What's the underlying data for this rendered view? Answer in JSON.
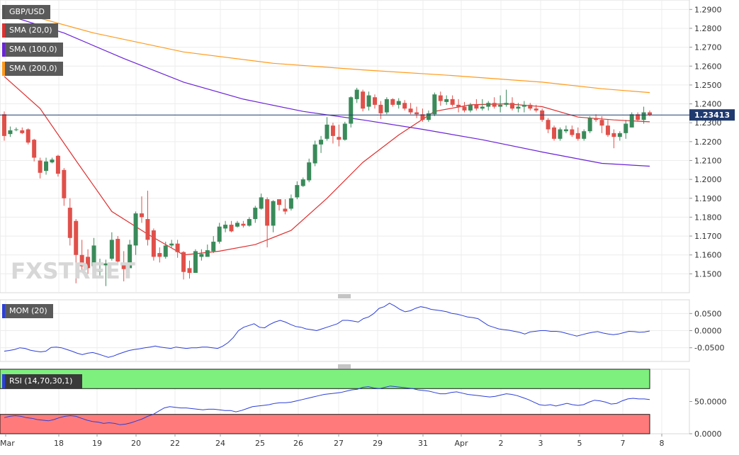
{
  "chart_data": [
    {
      "type": "candlestick",
      "symbol": "GBP/USD",
      "ylim": [
        1.14,
        1.295
      ],
      "price_ticks": [
        "1.1500",
        "1.1600",
        "1.1700",
        "1.1800",
        "1.1900",
        "1.2000",
        "1.2100",
        "1.2200",
        "1.2300",
        "1.2400",
        "1.2500",
        "1.2600",
        "1.2700",
        "1.2800",
        "1.2900"
      ],
      "current_price": "1.23413",
      "x_tick_labels": [
        "Mar",
        "18",
        "19",
        "20",
        "22",
        "24",
        "25",
        "26",
        "27",
        "29",
        "31",
        "Apr",
        "2",
        "3",
        "5",
        "7",
        "8"
      ],
      "legend": [
        {
          "label": "GBP/USD",
          "color": "#555555"
        },
        {
          "label": "SMA (20,0)",
          "color": "#e03030"
        },
        {
          "label": "SMA (100,0)",
          "color": "#6a22d8"
        },
        {
          "label": "SMA (200,0)",
          "color": "#ff9a1a"
        }
      ],
      "candles": [
        [
          1.2345,
          1.236,
          1.2205,
          1.223
        ],
        [
          1.224,
          1.228,
          1.2225,
          1.226
        ],
        [
          1.2265,
          1.2275,
          1.2255,
          1.2265
        ],
        [
          1.226,
          1.2275,
          1.224,
          1.2245
        ],
        [
          1.2265,
          1.227,
          1.2185,
          1.2195
        ],
        [
          1.221,
          1.2215,
          1.2095,
          1.2115
        ],
        [
          1.21,
          1.2115,
          1.2005,
          1.2035
        ],
        [
          1.2045,
          1.2115,
          1.2025,
          1.2095
        ],
        [
          1.209,
          1.2115,
          1.2085,
          1.2105
        ],
        [
          1.2125,
          1.213,
          1.2015,
          1.203
        ],
        [
          1.205,
          1.206,
          1.186,
          1.19
        ],
        [
          1.185,
          1.19,
          1.165,
          1.169
        ],
        [
          1.178,
          1.179,
          1.145,
          1.16
        ],
        [
          1.16,
          1.168,
          1.151,
          1.154
        ],
        [
          1.159,
          1.163,
          1.15,
          1.153
        ],
        [
          1.154,
          1.169,
          1.149,
          1.165
        ],
        [
          1.151,
          1.158,
          1.1485,
          1.1525
        ],
        [
          1.1545,
          1.1575,
          1.1435,
          1.1555
        ],
        [
          1.158,
          1.172,
          1.157,
          1.168
        ],
        [
          1.1685,
          1.17,
          1.1545,
          1.1565
        ],
        [
          1.1545,
          1.162,
          1.146,
          1.1525
        ],
        [
          1.153,
          1.168,
          1.1535,
          1.1655
        ],
        [
          1.165,
          1.183,
          1.16,
          1.182
        ],
        [
          1.182,
          1.191,
          1.177,
          1.18
        ],
        [
          1.179,
          1.194,
          1.165,
          1.168
        ],
        [
          1.173,
          1.174,
          1.157,
          1.159
        ],
        [
          1.161,
          1.164,
          1.156,
          1.159
        ],
        [
          1.159,
          1.167,
          1.158,
          1.165
        ],
        [
          1.165,
          1.168,
          1.164,
          1.166
        ],
        [
          1.166,
          1.168,
          1.1585,
          1.1615
        ],
        [
          1.1615,
          1.162,
          1.147,
          1.151
        ],
        [
          1.153,
          1.157,
          1.1475,
          1.1505
        ],
        [
          1.1505,
          1.163,
          1.1505,
          1.162
        ],
        [
          1.159,
          1.163,
          1.157,
          1.1605
        ],
        [
          1.159,
          1.1655,
          1.1595,
          1.1625
        ],
        [
          1.162,
          1.17,
          1.161,
          1.167
        ],
        [
          1.167,
          1.177,
          1.166,
          1.175
        ],
        [
          1.174,
          1.178,
          1.172,
          1.176
        ],
        [
          1.176,
          1.178,
          1.172,
          1.1725
        ],
        [
          1.175,
          1.178,
          1.1745,
          1.177
        ],
        [
          1.1765,
          1.178,
          1.1745,
          1.1755
        ],
        [
          1.1755,
          1.18,
          1.175,
          1.179
        ],
        [
          1.179,
          1.186,
          1.177,
          1.185
        ],
        [
          1.1845,
          1.1925,
          1.184,
          1.1905
        ],
        [
          1.1895,
          1.1905,
          1.164,
          1.1755
        ],
        [
          1.1755,
          1.189,
          1.172,
          1.1885
        ],
        [
          1.1895,
          1.189,
          1.1835,
          1.1865
        ],
        [
          1.1845,
          1.1895,
          1.1815,
          1.183
        ],
        [
          1.1845,
          1.192,
          1.1835,
          1.19
        ],
        [
          1.1905,
          1.199,
          1.1895,
          1.197
        ],
        [
          1.1965,
          1.201,
          1.196,
          1.2
        ],
        [
          1.1995,
          1.211,
          1.1985,
          1.209
        ],
        [
          1.2085,
          1.2205,
          1.207,
          1.2185
        ],
        [
          1.2185,
          1.223,
          1.214,
          1.221
        ],
        [
          1.2215,
          1.233,
          1.2205,
          1.229
        ],
        [
          1.2285,
          1.23,
          1.219,
          1.223
        ],
        [
          1.2225,
          1.229,
          1.2175,
          1.221
        ],
        [
          1.221,
          1.2305,
          1.2205,
          1.2295
        ],
        [
          1.2295,
          1.244,
          1.2275,
          1.2435
        ],
        [
          1.2425,
          1.2485,
          1.2405,
          1.2475
        ],
        [
          1.2465,
          1.2475,
          1.236,
          1.2375
        ],
        [
          1.2385,
          1.2465,
          1.2365,
          1.2445
        ],
        [
          1.2435,
          1.245,
          1.2375,
          1.2395
        ],
        [
          1.2395,
          1.2415,
          1.232,
          1.235
        ],
        [
          1.2355,
          1.2435,
          1.2345,
          1.2425
        ],
        [
          1.2425,
          1.243,
          1.2385,
          1.2395
        ],
        [
          1.2395,
          1.243,
          1.2375,
          1.2415
        ],
        [
          1.2405,
          1.242,
          1.2365,
          1.2375
        ],
        [
          1.2375,
          1.2405,
          1.2345,
          1.2355
        ],
        [
          1.2355,
          1.2385,
          1.2325,
          1.2345
        ],
        [
          1.2345,
          1.2375,
          1.2305,
          1.2315
        ],
        [
          1.2315,
          1.2365,
          1.2305,
          1.235
        ],
        [
          1.2345,
          1.246,
          1.2335,
          1.245
        ],
        [
          1.2445,
          1.2465,
          1.239,
          1.2415
        ],
        [
          1.241,
          1.2445,
          1.2395,
          1.2425
        ],
        [
          1.2425,
          1.2445,
          1.2385,
          1.2395
        ],
        [
          1.2395,
          1.2425,
          1.2355,
          1.2385
        ],
        [
          1.2385,
          1.241,
          1.2355,
          1.2365
        ],
        [
          1.2365,
          1.2405,
          1.2355,
          1.2395
        ],
        [
          1.2395,
          1.2425,
          1.2365,
          1.2375
        ],
        [
          1.2375,
          1.2425,
          1.2365,
          1.2385
        ],
        [
          1.2385,
          1.2415,
          1.2365,
          1.2405
        ],
        [
          1.2405,
          1.2435,
          1.2375,
          1.2385
        ],
        [
          1.2385,
          1.2445,
          1.2355,
          1.2395
        ],
        [
          1.2395,
          1.2475,
          1.2385,
          1.2405
        ],
        [
          1.2405,
          1.2435,
          1.2365,
          1.2375
        ],
        [
          1.2375,
          1.2405,
          1.2355,
          1.2385
        ],
        [
          1.2385,
          1.2415,
          1.2355,
          1.2395
        ],
        [
          1.2395,
          1.2405,
          1.2365,
          1.2375
        ],
        [
          1.2375,
          1.2395,
          1.2355,
          1.2365
        ],
        [
          1.2365,
          1.2375,
          1.2305,
          1.2315
        ],
        [
          1.2315,
          1.2325,
          1.2245,
          1.2265
        ],
        [
          1.2275,
          1.2285,
          1.2205,
          1.2215
        ],
        [
          1.2215,
          1.2275,
          1.2205,
          1.2265
        ],
        [
          1.2255,
          1.2285,
          1.2245,
          1.2265
        ],
        [
          1.2265,
          1.2285,
          1.2225,
          1.2235
        ],
        [
          1.2245,
          1.2275,
          1.2205,
          1.2215
        ],
        [
          1.2215,
          1.2265,
          1.2205,
          1.2255
        ],
        [
          1.2255,
          1.2335,
          1.2245,
          1.2325
        ],
        [
          1.2325,
          1.2345,
          1.2305,
          1.2315
        ],
        [
          1.2315,
          1.2335,
          1.2245,
          1.2285
        ],
        [
          1.2285,
          1.2315,
          1.2225,
          1.2235
        ],
        [
          1.2245,
          1.2265,
          1.2165,
          1.2225
        ],
        [
          1.2225,
          1.2255,
          1.2205,
          1.2245
        ],
        [
          1.2245,
          1.2315,
          1.2215,
          1.2295
        ],
        [
          1.2275,
          1.2355,
          1.2275,
          1.2345
        ],
        [
          1.2345,
          1.2355,
          1.2305,
          1.2315
        ],
        [
          1.2315,
          1.2385,
          1.2295,
          1.2355
        ],
        [
          1.2355,
          1.2365,
          1.2335,
          1.2341
        ]
      ],
      "sma": [
        {
          "name": "SMA (20,0)",
          "color": "#e03030",
          "points": [
            [
              0,
              1.2545
            ],
            [
              6,
              1.2375
            ],
            [
              12,
              1.21
            ],
            [
              18,
              1.183
            ],
            [
              24,
              1.171
            ],
            [
              30,
              1.16
            ],
            [
              36,
              1.162
            ],
            [
              42,
              1.1655
            ],
            [
              48,
              1.173
            ],
            [
              54,
              1.19
            ],
            [
              60,
              1.209
            ],
            [
              66,
              1.2235
            ],
            [
              72,
              1.236
            ],
            [
              78,
              1.2395
            ],
            [
              84,
              1.24
            ],
            [
              90,
              1.2385
            ],
            [
              96,
              1.233
            ],
            [
              102,
              1.2315
            ],
            [
              108,
              1.2305
            ]
          ]
        },
        {
          "name": "SMA (100,0)",
          "color": "#6a22d8",
          "points": [
            [
              0,
              1.2875
            ],
            [
              10,
              1.2775
            ],
            [
              20,
              1.264
            ],
            [
              30,
              1.2515
            ],
            [
              40,
              1.2425
            ],
            [
              50,
              1.236
            ],
            [
              60,
              1.2315
            ],
            [
              70,
              1.2265
            ],
            [
              80,
              1.221
            ],
            [
              90,
              1.2145
            ],
            [
              100,
              1.2085
            ],
            [
              108,
              1.207
            ]
          ]
        },
        {
          "name": "SMA (200,0)",
          "color": "#ff9a1a",
          "points": [
            [
              0,
              1.2905
            ],
            [
              15,
              1.2775
            ],
            [
              30,
              1.2675
            ],
            [
              45,
              1.2615
            ],
            [
              60,
              1.258
            ],
            [
              75,
              1.255
            ],
            [
              90,
              1.2515
            ],
            [
              100,
              1.248
            ],
            [
              108,
              1.246
            ]
          ]
        }
      ]
    },
    {
      "type": "line",
      "label": "MOM (20)",
      "color": "#2c3fd8",
      "ylim": [
        -0.09,
        0.09
      ],
      "ticks": [
        "0.0500",
        "0.0000",
        "-0.0500"
      ],
      "values": [
        -0.06,
        -0.058,
        -0.055,
        -0.05,
        -0.052,
        -0.057,
        -0.06,
        -0.062,
        -0.06,
        -0.049,
        -0.048,
        -0.05,
        -0.055,
        -0.06,
        -0.066,
        -0.07,
        -0.066,
        -0.064,
        -0.068,
        -0.073,
        -0.078,
        -0.074,
        -0.068,
        -0.063,
        -0.058,
        -0.055,
        -0.053,
        -0.05,
        -0.048,
        -0.045,
        -0.048,
        -0.05,
        -0.052,
        -0.048,
        -0.05,
        -0.052,
        -0.05,
        -0.05,
        -0.048,
        -0.048,
        -0.05,
        -0.052,
        -0.045,
        -0.035,
        -0.02,
        0.0,
        0.01,
        0.015,
        0.02,
        0.01,
        0.008,
        0.018,
        0.025,
        0.03,
        0.025,
        0.018,
        0.012,
        0.01,
        0.005,
        0.003,
        0.0,
        0.005,
        0.01,
        0.015,
        0.02,
        0.03,
        0.03,
        0.028,
        0.025,
        0.035,
        0.04,
        0.05,
        0.065,
        0.07,
        0.08,
        0.072,
        0.062,
        0.055,
        0.058,
        0.065,
        0.07,
        0.067,
        0.062,
        0.06,
        0.058,
        0.055,
        0.05,
        0.048,
        0.044,
        0.04,
        0.038,
        0.035,
        0.025,
        0.015,
        0.01,
        0.005,
        0.003,
        0.001,
        -0.002,
        -0.005,
        -0.01,
        -0.004,
        -0.002,
        0.0,
        0.0,
        -0.002,
        -0.002,
        -0.004,
        -0.008,
        -0.012,
        -0.016,
        -0.012,
        -0.008,
        -0.005,
        -0.003,
        -0.007,
        -0.01,
        -0.012,
        -0.01,
        -0.006,
        -0.002,
        -0.003,
        -0.005,
        -0.004,
        -0.001
      ]
    },
    {
      "type": "line",
      "label": "RSI (14,70,30,1)",
      "color": "#2c3fd8",
      "ylim": [
        0,
        100
      ],
      "overbought": 70,
      "oversold": 30,
      "ticks": [
        "50.0000",
        "0.0000"
      ],
      "values": [
        25,
        27,
        28,
        27,
        25,
        24,
        22,
        21,
        20,
        22,
        25,
        27,
        28,
        27,
        24,
        21,
        19,
        18,
        16,
        17,
        16,
        14,
        15,
        17,
        20,
        23,
        27,
        30,
        35,
        40,
        42,
        41,
        40,
        40,
        39,
        38,
        37,
        38,
        38,
        37,
        36,
        36,
        34,
        36,
        39,
        42,
        43,
        44,
        45,
        47,
        48,
        48,
        49,
        51,
        53,
        55,
        57,
        59,
        61,
        62,
        63,
        64,
        66,
        68,
        69,
        72,
        73,
        71,
        70,
        72,
        74,
        73,
        72,
        71,
        70,
        68,
        67,
        66,
        64,
        62,
        62,
        64,
        65,
        63,
        61,
        60,
        59,
        58,
        57,
        58,
        60,
        62,
        61,
        59,
        56,
        53,
        49,
        45,
        44,
        45,
        43,
        45,
        47,
        45,
        44,
        45,
        49,
        52,
        51,
        49,
        46,
        47,
        51,
        54,
        55,
        54,
        54,
        53
      ]
    }
  ],
  "watermark": "FXSTREET"
}
